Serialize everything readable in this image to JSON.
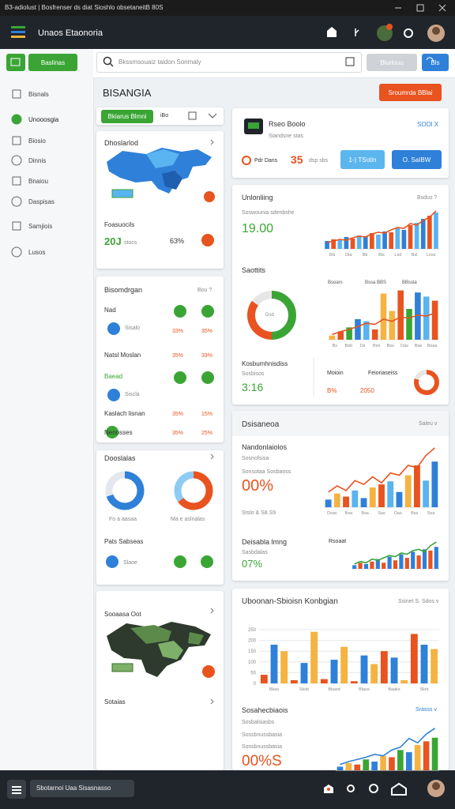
{
  "window": {
    "title": "B3-adiolust | Bosfrenser ds diat Sioshlo obsetaneitB 80S"
  },
  "header": {
    "title": "Unaos Etaonoria"
  },
  "sidebar": {
    "button": "Baslinas",
    "items": [
      "Bisnals",
      "Unooosgia",
      "Biosio",
      "Dinnis",
      "Bnaiou",
      "Daspisas",
      "Samjiois",
      "Lusos"
    ]
  },
  "toolbar": {
    "search": "Bkssmsouaiz taidon Sonmaly",
    "button1": "Blurlouu",
    "button2": "Bls"
  },
  "page": {
    "title": "BISANGIA",
    "action": "Sroumrda BBlai"
  },
  "left": {
    "tabs": {
      "active": "Bkiarus Blmni",
      "other": "iBo"
    },
    "map_card": {
      "title": "Dhoslarlod",
      "label": "Foasuocils",
      "value": "20J",
      "unit": "stocs",
      "percent": "63%"
    },
    "list_card": {
      "title": "Bisomdrgan",
      "more": "Bou ?",
      "rows": [
        {
          "name": "Nad",
          "sub": "Sisalo",
          "a": "33%",
          "b": "35%"
        },
        {
          "name": "Natsl Moslan",
          "a": "35%",
          "b": "33%"
        },
        {
          "name": "Baead",
          "sub": "Siscla"
        },
        {
          "name": "Kaslach lisnan",
          "a": "35%",
          "b": "15%"
        },
        {
          "name": "Nenosses",
          "a": "35%",
          "b": "25%"
        }
      ]
    },
    "donut_card": {
      "title": "Dooslalas",
      "labels": [
        "Fo a aasaa",
        "Ma e aslnalas"
      ],
      "donuts": [
        {
          "values": [
            70,
            30
          ],
          "colors": [
            "#2f80d8",
            "#e4e8ee"
          ]
        },
        {
          "values": [
            65,
            35
          ],
          "colors": [
            "#e8531f",
            "#8ecbf3"
          ]
        }
      ],
      "footer": "Pats Sabseas",
      "sub": "Slaoe"
    },
    "map2_card": {
      "title": "Sooaasa Oot",
      "footer": "Sotaias"
    }
  },
  "summary": {
    "title": "Rseo Boolo",
    "subtitle": "Siandsne stas",
    "link": "SOOl X",
    "tag": "Pdr Dans",
    "value": "35",
    "unit": "dsp sbs",
    "button1": "1-) TSotin",
    "button2": "O. SaIBW"
  },
  "trend_card": {
    "title": "Unlonliing",
    "more": "Bsdus ?",
    "sub": "Soswounia sdenbshe",
    "value": "19.00",
    "chart": {
      "values": [
        10,
        12,
        11,
        15,
        13,
        17,
        16,
        20,
        18,
        22,
        21,
        26,
        24,
        30,
        33,
        38,
        42,
        46
      ],
      "colors": [
        "#2f80d8",
        "#e8531f",
        "#59b4f0"
      ],
      "line": [
        8,
        10,
        12,
        11,
        14,
        16,
        15,
        19,
        21,
        20,
        24,
        27,
        26,
        32,
        30,
        36,
        40,
        48
      ],
      "line_color": "#e8531f",
      "ylim": [
        0,
        50
      ],
      "x_labels": [
        "Dls",
        "Dla",
        "Bb",
        "Bls",
        "Lsd",
        "Bsl",
        "Loss"
      ]
    },
    "sales_title": "Saottits",
    "sales_donut": {
      "values": [
        50,
        35,
        15
      ],
      "colors": [
        "#3aa535",
        "#e8531f",
        "#e6e6e6"
      ]
    },
    "donut_label": "Dsd",
    "sales_chart": {
      "labels": [
        "Bsoars",
        "Bssa BBS",
        "BBssla"
      ],
      "values": [
        4,
        8,
        12,
        20,
        18,
        10,
        45,
        28,
        48,
        30,
        46,
        42,
        38
      ],
      "colors": [
        "#f5b342",
        "#e8531f",
        "#3aa535",
        "#2f80d8",
        "#59b4f0",
        "#e8531f",
        "#f5b342"
      ],
      "line": [
        5,
        8,
        10,
        13,
        16,
        15,
        20,
        18,
        22,
        21,
        24,
        23,
        26
      ],
      "line_color": "#e8531f",
      "ylim": [
        0,
        50
      ],
      "x_labels": [
        "Bs",
        "Bsb",
        "Ds",
        "Bes",
        "Bss",
        "Das",
        "Bas",
        "Bsaa"
      ]
    },
    "kpi_title": "Kosbumhnisdiss",
    "kpi_sub": "Sosbisos",
    "kpi_value": "3:16",
    "stat1_title": "Moioin",
    "stat1_value": "B%",
    "stat2_title": "Feioriaseiss",
    "stat2_value": "2050",
    "small_donut": {
      "values": [
        80,
        20
      ],
      "colors": [
        "#e8531f",
        "#e6e6e6"
      ]
    }
  },
  "analysis_card": {
    "title": "Dsisaneoa",
    "more": "Saleu v",
    "block1": {
      "title": "Nandonlaiolos",
      "sub": "Sosnofsisa",
      "note": "Sonsotaa Sosbaoss",
      "value": "00%",
      "foot": "Stslo & S8.S9",
      "chart": {
        "values": [
          10,
          18,
          14,
          22,
          12,
          26,
          30,
          34,
          20,
          42,
          55,
          35,
          60
        ],
        "colors": [
          "#2f80d8",
          "#f5b342",
          "#e8531f",
          "#59b4f0"
        ],
        "line": [
          20,
          28,
          22,
          35,
          30,
          40,
          32,
          45,
          42,
          55,
          52,
          68,
          78
        ],
        "line_color": "#e8531f",
        "ylim": [
          0,
          80
        ],
        "x_labels": [
          "Dsas",
          "Bsa",
          "Bsa",
          "Sas",
          "Das",
          "Bss",
          "Ssa"
        ]
      }
    },
    "block2": {
      "title": "Deisabla lmng",
      "sub": "Sasbdalas",
      "value": "07%",
      "label": "Rsoaat",
      "chart": {
        "values": [
          3,
          5,
          4,
          6,
          8,
          5,
          10,
          7,
          12,
          9,
          14,
          11,
          16,
          15,
          18
        ],
        "colors": [
          "#2f80d8",
          "#e8531f"
        ],
        "line": [
          4,
          6,
          5,
          8,
          7,
          9,
          11,
          10,
          13,
          12,
          15,
          16,
          14,
          19,
          22
        ],
        "line_color": "#3aa535",
        "ylim": [
          0,
          24
        ]
      }
    }
  },
  "bottom_card": {
    "title": "Uboonan-Sbioisn Konbgian",
    "more": "Ssinet S. Sdos v",
    "chart": {
      "values": [
        40,
        180,
        150,
        15,
        95,
        240,
        20,
        110,
        170,
        10,
        130,
        90,
        150,
        120,
        15,
        230,
        180,
        160
      ],
      "colors": [
        "#e8531f",
        "#2f80d8",
        "#f5b342"
      ],
      "ylim": [
        0,
        250
      ],
      "yticks": [
        0,
        50,
        100,
        150,
        200,
        250
      ],
      "x_labels": [
        "Bkas",
        "Sksb",
        "Bkasd",
        "Blaus",
        "Baaks",
        "Skrk"
      ]
    },
    "sub_title": "Sosahecbiaois",
    "sub_more": "Srasss v",
    "sub_line1": "Sosbalsiasbs",
    "sub_line2": "Sossbnussbasia",
    "sub_value": "00%S",
    "sub_chart": {
      "values": [
        5,
        10,
        8,
        15,
        12,
        20,
        18,
        28,
        25,
        35,
        40,
        45
      ],
      "colors": [
        "#2f80d8",
        "#f5b342",
        "#e8531f",
        "#3aa535"
      ],
      "line": [
        8,
        12,
        15,
        18,
        22,
        20,
        28,
        32,
        44,
        38,
        50,
        58
      ],
      "line_color": "#2f80d8",
      "ylim": [
        0,
        60
      ]
    }
  },
  "taskbar": {
    "label": "Sbotarnoi Uaa Sisasnasso"
  }
}
